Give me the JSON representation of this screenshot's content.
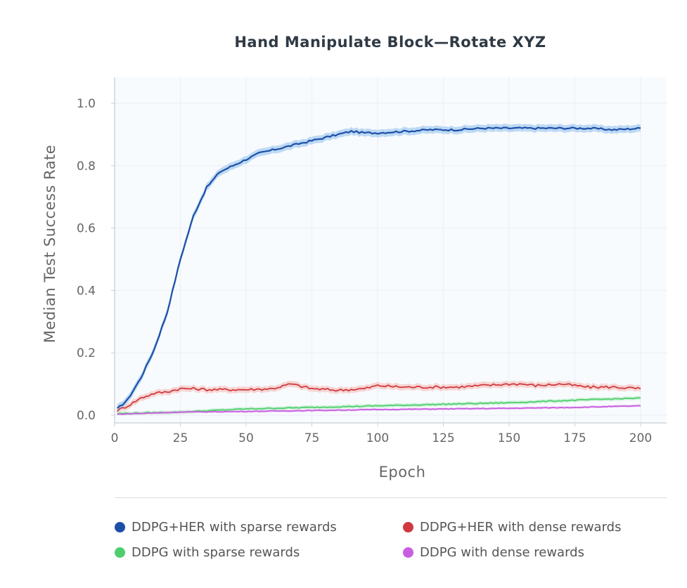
{
  "chart_data": {
    "type": "line",
    "title": "Hand Manipulate Block—Rotate XYZ",
    "xlabel": "Epoch",
    "ylabel": "Median Test Success Rate",
    "xlim": [
      0,
      210
    ],
    "ylim": [
      0,
      1.08
    ],
    "xticks": [
      0,
      25,
      50,
      75,
      100,
      125,
      150,
      175,
      200
    ],
    "yticks": [
      0.0,
      0.2,
      0.4,
      0.6,
      0.8,
      1.0
    ],
    "xtick_labels": [
      "0",
      "25",
      "50",
      "75",
      "100",
      "125",
      "150",
      "175",
      "200"
    ],
    "ytick_labels": [
      "0.0",
      "0.2",
      "0.4",
      "0.6",
      "0.8",
      "1.0"
    ],
    "legend_position": "bottom",
    "series": [
      {
        "name": "DDPG+HER with sparse rewards",
        "color": "#1d4fa8",
        "band_color": "#a9cdf0",
        "x": [
          1,
          5,
          10,
          15,
          20,
          25,
          30,
          35,
          40,
          45,
          50,
          55,
          60,
          65,
          70,
          75,
          80,
          85,
          90,
          95,
          100,
          110,
          120,
          130,
          140,
          150,
          160,
          170,
          180,
          190,
          200
        ],
        "y": [
          0.02,
          0.05,
          0.12,
          0.21,
          0.33,
          0.5,
          0.64,
          0.73,
          0.78,
          0.8,
          0.82,
          0.84,
          0.85,
          0.86,
          0.87,
          0.88,
          0.89,
          0.9,
          0.91,
          0.905,
          0.905,
          0.91,
          0.915,
          0.915,
          0.92,
          0.92,
          0.92,
          0.92,
          0.92,
          0.915,
          0.92
        ]
      },
      {
        "name": "DDPG+HER with dense rewards",
        "color": "#d0393f",
        "band_color": "#f6c9c6",
        "x": [
          1,
          5,
          10,
          15,
          20,
          25,
          30,
          35,
          40,
          50,
          60,
          67,
          75,
          85,
          95,
          100,
          110,
          120,
          130,
          140,
          150,
          155,
          160,
          170,
          180,
          190,
          200
        ],
        "y": [
          0.015,
          0.03,
          0.055,
          0.07,
          0.075,
          0.085,
          0.085,
          0.082,
          0.082,
          0.082,
          0.085,
          0.1,
          0.085,
          0.08,
          0.085,
          0.095,
          0.09,
          0.09,
          0.09,
          0.095,
          0.1,
          0.1,
          0.095,
          0.1,
          0.09,
          0.09,
          0.085
        ]
      },
      {
        "name": "DDPG with sparse rewards",
        "color": "#4fce6e",
        "band_color": "#c3efcd",
        "x": [
          1,
          25,
          50,
          75,
          100,
          125,
          150,
          175,
          200
        ],
        "y": [
          0.005,
          0.01,
          0.02,
          0.025,
          0.03,
          0.035,
          0.04,
          0.048,
          0.055
        ]
      },
      {
        "name": "DDPG with dense rewards",
        "color": "#c95fe0",
        "band_color": "#ecc8f4",
        "x": [
          1,
          25,
          50,
          75,
          100,
          125,
          150,
          175,
          200
        ],
        "y": [
          0.003,
          0.01,
          0.012,
          0.015,
          0.018,
          0.02,
          0.022,
          0.025,
          0.03
        ]
      }
    ]
  },
  "legend": {
    "items": [
      {
        "label": "DDPG+HER with sparse rewards",
        "color": "#1d4fa8"
      },
      {
        "label": "DDPG+HER with dense rewards",
        "color": "#d0393f"
      },
      {
        "label": "DDPG with sparse rewards",
        "color": "#4fce6e"
      },
      {
        "label": "DDPG with dense rewards",
        "color": "#c95fe0"
      }
    ]
  }
}
